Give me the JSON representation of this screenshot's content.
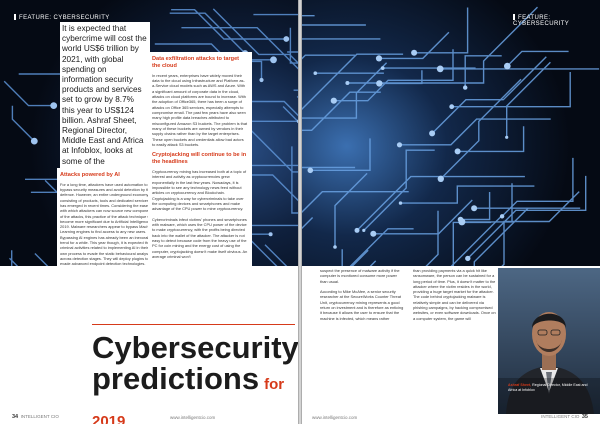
{
  "header": {
    "section_left": "FEATURE: CYBERSECURITY",
    "section_right": "FEATURE: CYBERSECURITY"
  },
  "intro": "It is expected that cybercrime will cost the world US$6 trillion by 2021, with global spending on information security products and services set to grow by 8.7% this year to US$124 billion. Ashraf Sheet, Regional Director, Middle East and Africa at Infoblox, looks at some of the cybersecurity trends that seem poised to significantly alter the landscape in 2019.",
  "sections": {
    "ai": {
      "heading": "Attacks powered by AI",
      "text": "For a long time, attackers have used automation to bypass security measures and avoid detection by the defence. However, an entire underground economy consisting of products, tools and dedicated services has emerged in recent times. Considering the ease with which attackers can now source new components of the attacks, this practice of the attack technique will become more significant due to Artificial Intelligence in 2019. Malware researchers appear to bypass Machine Learning engines to find access to any new users. Bypassing AI engines has already been an inexorable trend for a while. This year though, it is expected that criminal activities related to implementing AI in their own process to evade the static behavioural analysis across detection stages. They will deploy plugins to evade advanced endpoint detection technologies."
    },
    "data": {
      "heading": "Data exfiltration attacks to target the cloud",
      "text": "In recent years, enterprises have widely moved their data to the cloud using Infrastructure and Platform as-a-Service cloud models such as AWS and Azure. With a significant amount of corporate data in the cloud, attacks on cloud platforms are bound to increase. With the adoption of Office365, there has been a surge of attacks on Office 365 services, especially attempts to compromise email. The past few years have also seen many high profile data breaches attributed to misconfigured Amazon S3 buckets. The problem is that many of these buckets are owned by vendors in their supply chains rather than by the target enterprises. These open buckets and credentials allow bad actors to easily attack S3 buckets."
    },
    "crypto": {
      "heading": "Cryptojacking will continue to be in the headlines",
      "text1": "Cryptocurrency mining has increased both at a topic of interest and activity as cryptocurrencies grew exponentially in the last few years. Nowadays, it is impossible to see any technology news feed without articles on cryptocurrency and Blockchain. Cryptojacking is a way for cybercriminals to take over the computing devices and smartphones and make advantage of the CPU power to mine cryptocurrency.",
      "text2": "Cybercriminals infect victims' phones and smartphones with malware, which uses the CPU power of the device to make cryptocurrency, with the profits being directed back into the wallet of the attacker. The attacker is not easy to detect because code from the heavy use of the PC for coin mining and the energy cost of using the computer, cryptojacking doesn't make itself obvious. An average criminal won't"
    },
    "right1": "suspect the presence of malware activity if the computer is monitored consume more power than usual.\n\nAccording to Mike McAfee, a senior security researcher at the SecureWorks Counter Threat Unit, cryptocurrency mining represents a good return on investment and is therefore as enticing it because it allows the user to ensure that the machine is infected, which means rather",
    "right2": "than providing payments via a quick hit like ransomware, the person can be sustained for a long period of time. Plus, it doesn't matter to the attacker where the victim resides in the world, providing a huge target market for the attacker. The code behind cryptojacking malware is relatively simple and can be delivered via phishing campaigns, by hacking compromised websites, or even software downloads. Once on a computer system, the game will"
  },
  "title": {
    "line1": "Cybersecurity",
    "line2": "predictions",
    "year": "for 2019"
  },
  "caption": {
    "name": "Ashraf Sheet,",
    "role": "Regional Director, Middle East and Africa at Infoblox"
  },
  "footer": {
    "left_page": "34",
    "left_mag": "INTELLIGENT CIO",
    "left_url": "www.intelligentcio.com",
    "right_url": "www.intelligentcio.com",
    "right_mag": "INTELLIGENT CIO",
    "right_page": "35"
  },
  "colors": {
    "accent": "#d63a1a",
    "circuit_dark": "#0a1220",
    "circuit_trace": "#2f6fb5"
  }
}
